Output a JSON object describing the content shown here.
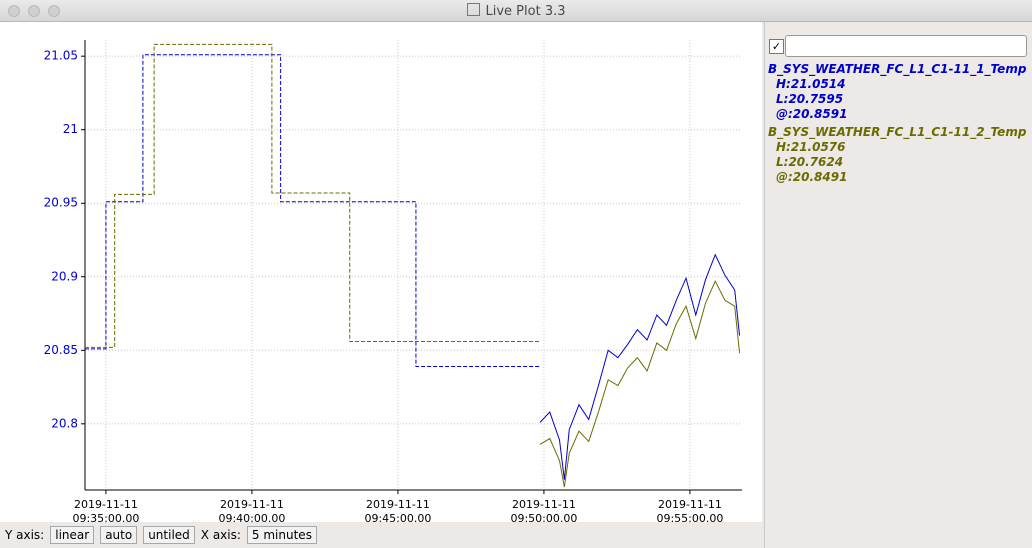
{
  "window": {
    "title": "Live Plot 3.3"
  },
  "chart_data": {
    "type": "step-line",
    "xlim": [
      "2019-11-11T09:34:17",
      "2019-11-11T09:56:47"
    ],
    "xticks": [
      {
        "value": "2019-11-11T09:35:00",
        "label": "2019-11-11\n09:35:00.00"
      },
      {
        "value": "2019-11-11T09:40:00",
        "label": "2019-11-11\n09:40:00.00"
      },
      {
        "value": "2019-11-11T09:45:00",
        "label": "2019-11-11\n09:45:00.00"
      },
      {
        "value": "2019-11-11T09:50:00",
        "label": "2019-11-11\n09:50:00.00"
      },
      {
        "value": "2019-11-11T09:55:00",
        "label": "2019-11-11\n09:55:00.00"
      }
    ],
    "ylim": [
      20.755,
      21.061
    ],
    "yticks": [
      20.8,
      20.85,
      20.9,
      20.95,
      21,
      21.05
    ],
    "grid": true,
    "series": [
      {
        "name": "B_SYS_WEATHER_FC_L1_C1-11_1_Temp",
        "color": "#0000cc",
        "stats": [
          "H:21.0514",
          "L:20.7595",
          "@:20.8591"
        ],
        "x": [
          "2019-11-11T09:34:17",
          "2019-11-11T09:35:00",
          "2019-11-11T09:36:16",
          "2019-11-11T09:40:59",
          "2019-11-11T09:45:37",
          "2019-11-11T09:49:52"
        ],
        "values": [
          20.851,
          20.951,
          21.051,
          20.951,
          20.839,
          20.839
        ],
        "live_x": [
          "2019-11-11T09:49:52",
          "2019-11-11T09:50:12",
          "2019-11-11T09:50:32",
          "2019-11-11T09:50:42",
          "2019-11-11T09:50:52",
          "2019-11-11T09:51:12",
          "2019-11-11T09:51:32",
          "2019-11-11T09:51:52",
          "2019-11-11T09:52:12",
          "2019-11-11T09:52:32",
          "2019-11-11T09:52:52",
          "2019-11-11T09:53:12",
          "2019-11-11T09:53:32",
          "2019-11-11T09:53:52",
          "2019-11-11T09:54:12",
          "2019-11-11T09:54:32",
          "2019-11-11T09:54:52",
          "2019-11-11T09:55:12",
          "2019-11-11T09:55:32",
          "2019-11-11T09:55:52",
          "2019-11-11T09:56:12",
          "2019-11-11T09:56:32",
          "2019-11-11T09:56:42"
        ],
        "live_values": [
          20.801,
          20.808,
          20.789,
          20.762,
          20.796,
          20.813,
          20.803,
          20.826,
          20.85,
          20.845,
          20.854,
          20.864,
          20.857,
          20.874,
          20.867,
          20.884,
          20.899,
          20.874,
          20.898,
          20.915,
          20.901,
          20.891,
          20.86
        ]
      },
      {
        "name": "B_SYS_WEATHER_FC_L1_C1-11_2_Temp",
        "color": "#6b6b00",
        "stats": [
          "H:21.0576",
          "L:20.7624",
          "@:20.8491"
        ],
        "x": [
          "2019-11-11T09:34:17",
          "2019-11-11T09:35:18",
          "2019-11-11T09:36:39",
          "2019-11-11T09:40:41",
          "2019-11-11T09:43:21",
          "2019-11-11T09:49:52"
        ],
        "values": [
          20.852,
          20.956,
          21.058,
          20.957,
          20.856,
          20.856
        ],
        "live_x": [
          "2019-11-11T09:49:52",
          "2019-11-11T09:50:12",
          "2019-11-11T09:50:32",
          "2019-11-11T09:50:42",
          "2019-11-11T09:50:52",
          "2019-11-11T09:51:12",
          "2019-11-11T09:51:32",
          "2019-11-11T09:51:52",
          "2019-11-11T09:52:12",
          "2019-11-11T09:52:32",
          "2019-11-11T09:52:52",
          "2019-11-11T09:53:12",
          "2019-11-11T09:53:32",
          "2019-11-11T09:53:52",
          "2019-11-11T09:54:12",
          "2019-11-11T09:54:32",
          "2019-11-11T09:54:52",
          "2019-11-11T09:55:12",
          "2019-11-11T09:55:32",
          "2019-11-11T09:55:52",
          "2019-11-11T09:56:12",
          "2019-11-11T09:56:32",
          "2019-11-11T09:56:42"
        ],
        "live_values": [
          20.786,
          20.79,
          20.775,
          20.757,
          20.78,
          20.795,
          20.788,
          20.808,
          20.83,
          20.826,
          20.838,
          20.845,
          20.836,
          20.855,
          20.85,
          20.868,
          20.88,
          20.858,
          20.882,
          20.897,
          20.884,
          20.88,
          20.848
        ]
      }
    ]
  },
  "toolbar": {
    "y_label": "Y axis:",
    "y_scale": "linear",
    "y_range": "auto",
    "y_tiling": "untiled",
    "x_label": "X axis:",
    "x_span": "5 minutes"
  }
}
